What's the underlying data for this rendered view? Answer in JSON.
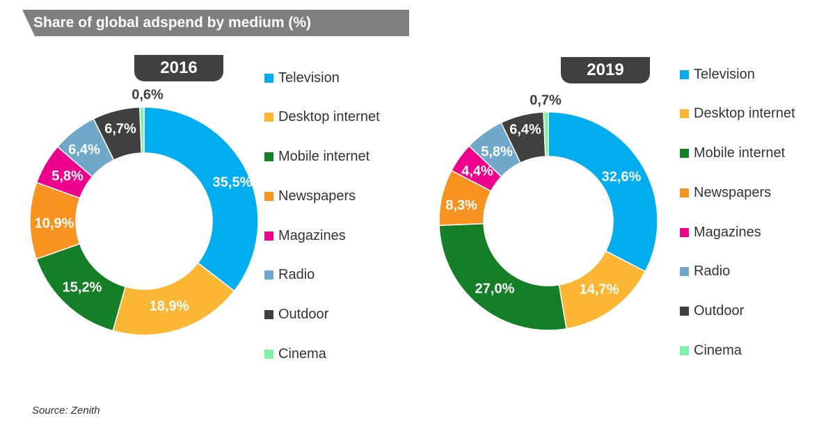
{
  "title": "Share of global adspend by medium (%)",
  "source": "Source: Zenith",
  "colors": {
    "Television": "#00aeef",
    "Desktop internet": "#fbb634",
    "Mobile internet": "#157f27",
    "Newspapers": "#f7931e",
    "Magazines": "#ec008c",
    "Radio": "#6fa8c8",
    "Outdoor": "#404040",
    "Cinema": "#7ff2a6"
  },
  "chart_data": [
    {
      "type": "pie",
      "donut": true,
      "title": "2016",
      "categories": [
        "Television",
        "Desktop internet",
        "Mobile internet",
        "Newspapers",
        "Magazines",
        "Radio",
        "Outdoor",
        "Cinema"
      ],
      "values": [
        35.5,
        18.9,
        15.2,
        10.9,
        5.8,
        6.4,
        6.7,
        0.6
      ],
      "labels": [
        "35,5%",
        "18,9%",
        "15,2%",
        "10,9%",
        "5,8%",
        "6,4%",
        "6,7%",
        "0,6%"
      ],
      "legend": "right"
    },
    {
      "type": "pie",
      "donut": true,
      "title": "2019",
      "categories": [
        "Television",
        "Desktop internet",
        "Mobile internet",
        "Newspapers",
        "Magazines",
        "Radio",
        "Outdoor",
        "Cinema"
      ],
      "values": [
        32.6,
        14.7,
        27.0,
        8.3,
        4.4,
        5.8,
        6.4,
        0.7
      ],
      "labels": [
        "32,6%",
        "14,7%",
        "27,0%",
        "8,3%",
        "4,4%",
        "5,8%",
        "6,4%",
        "0,7%"
      ],
      "legend": "right"
    }
  ]
}
